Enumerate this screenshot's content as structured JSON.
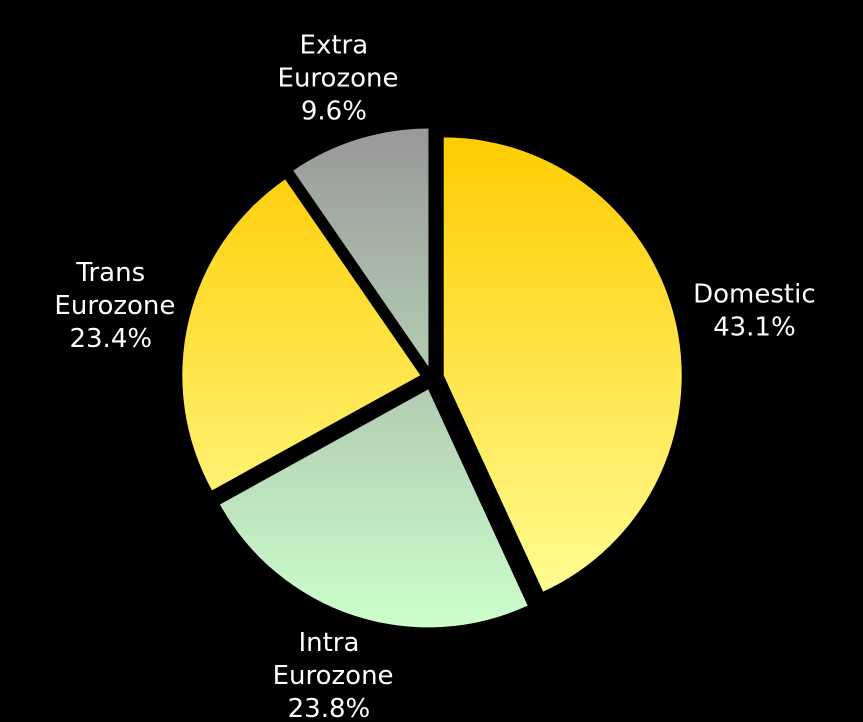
{
  "chart_data": {
    "type": "pie",
    "categories": [
      "Domestic",
      "Intra Eurozone",
      "Trans Eurozone",
      "Extra Eurozone"
    ],
    "values": [
      43.1,
      23.8,
      23.4,
      9.6
    ],
    "value_labels": [
      "43.1%",
      "23.8%",
      "23.4%",
      "9.6%"
    ],
    "colors": [
      [
        "#ffcc00",
        "#ffff99"
      ],
      [
        "#999999",
        "#ccffcc"
      ],
      [
        "#ffcc00",
        "#ffff99"
      ],
      [
        "#999999",
        "#ccffcc"
      ]
    ],
    "background": "#000000"
  }
}
